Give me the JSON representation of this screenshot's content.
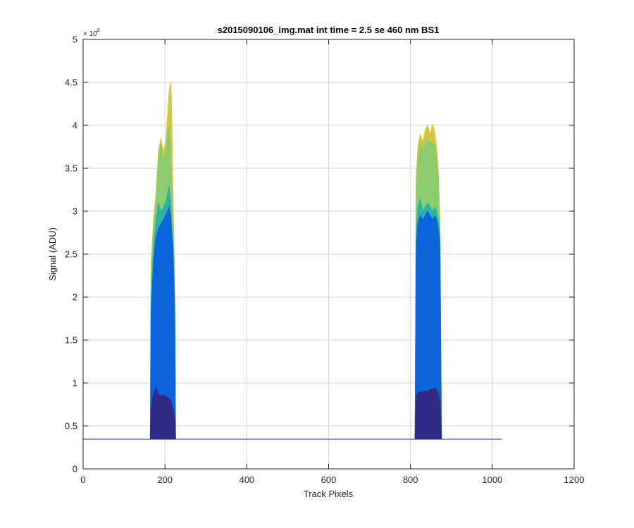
{
  "chart_data": {
    "type": "area",
    "title": "s2015090106_img.mat int time = 2.5 se  460 nm BS1",
    "xlabel": "Track Pixels",
    "ylabel": "Signal (ADU)",
    "xlim": [
      0,
      1200
    ],
    "ylim": [
      0,
      50000
    ],
    "x_ticks": [
      0,
      200,
      400,
      600,
      800,
      1000,
      1200
    ],
    "x_tick_labels": [
      "0",
      "200",
      "400",
      "600",
      "800",
      "1000",
      "1200"
    ],
    "y_ticks": [
      0,
      5000,
      10000,
      15000,
      20000,
      25000,
      30000,
      35000,
      40000,
      45000,
      50000
    ],
    "y_tick_labels": [
      "0",
      "0.5",
      "1",
      "1.5",
      "2",
      "2.5",
      "3",
      "3.5",
      "4",
      "4.5",
      "5"
    ],
    "y_exponent_label": "× 10",
    "y_exponent_power": "4",
    "grid": true,
    "baseline_value": 3450,
    "series": [
      {
        "color": "#d4c83a",
        "x": [
          1,
          164,
          166,
          172,
          178,
          184,
          190,
          196,
          202,
          206,
          210,
          214,
          216,
          220,
          224,
          226,
          564,
          811,
          814,
          818,
          824,
          830,
          836,
          842,
          848,
          854,
          860,
          864,
          868,
          872,
          876,
          1023
        ],
        "y": [
          3450,
          3450,
          24000,
          29000,
          32000,
          37000,
          38500,
          37000,
          38000,
          41000,
          44000,
          45000,
          43000,
          31000,
          22000,
          3450,
          3450,
          3450,
          34000,
          37500,
          39000,
          38000,
          39500,
          40000,
          39000,
          40200,
          39000,
          37500,
          35000,
          29000,
          3450,
          3450
        ]
      },
      {
        "color": "#8ccc6e",
        "x": [
          1,
          164,
          166,
          172,
          178,
          184,
          190,
          196,
          202,
          206,
          210,
          214,
          216,
          220,
          224,
          226,
          564,
          811,
          814,
          818,
          824,
          830,
          836,
          842,
          848,
          854,
          860,
          864,
          868,
          872,
          876,
          1023
        ],
        "y": [
          3450,
          3450,
          22000,
          28000,
          31000,
          36000,
          38000,
          36000,
          37000,
          39000,
          40000,
          38000,
          34000,
          29000,
          21000,
          3450,
          3450,
          3450,
          33000,
          36000,
          38000,
          37000,
          38000,
          38500,
          38000,
          38000,
          37500,
          36000,
          34000,
          28000,
          3450,
          3450
        ]
      },
      {
        "color": "#2cb3a6",
        "x": [
          1,
          164,
          166,
          172,
          178,
          184,
          190,
          196,
          202,
          206,
          210,
          214,
          216,
          220,
          224,
          226,
          564,
          811,
          814,
          818,
          824,
          830,
          836,
          842,
          848,
          854,
          860,
          864,
          868,
          872,
          876,
          1023
        ],
        "y": [
          3450,
          3450,
          20000,
          26000,
          29000,
          31000,
          30000,
          30500,
          31000,
          32000,
          33000,
          31000,
          29000,
          26000,
          19000,
          3450,
          3450,
          3450,
          28000,
          30500,
          31500,
          30000,
          30500,
          31000,
          30500,
          30000,
          30500,
          30000,
          29000,
          27000,
          3450,
          3450
        ]
      },
      {
        "color": "#0a64dc",
        "x": [
          1,
          164,
          166,
          172,
          178,
          184,
          190,
          196,
          202,
          206,
          210,
          214,
          216,
          220,
          224,
          226,
          564,
          811,
          814,
          818,
          824,
          830,
          836,
          842,
          848,
          854,
          860,
          864,
          868,
          872,
          876,
          1023
        ],
        "y": [
          3450,
          3450,
          18000,
          24000,
          27000,
          28000,
          28500,
          29000,
          29500,
          30000,
          30500,
          29500,
          28000,
          25000,
          18000,
          3450,
          3450,
          3450,
          26000,
          28500,
          29500,
          29000,
          29500,
          30000,
          29500,
          29000,
          29500,
          29000,
          28000,
          26000,
          3450,
          3450
        ]
      },
      {
        "color": "#2f2a87",
        "x": [
          1,
          164,
          166,
          172,
          178,
          184,
          190,
          196,
          202,
          206,
          210,
          214,
          216,
          220,
          224,
          226,
          564,
          811,
          814,
          818,
          824,
          830,
          836,
          842,
          848,
          854,
          860,
          864,
          868,
          872,
          876,
          1023
        ],
        "y": [
          3450,
          3450,
          7000,
          8800,
          9500,
          8600,
          8500,
          8600,
          8500,
          8300,
          8200,
          8000,
          7600,
          7000,
          6000,
          3450,
          3450,
          3450,
          8500,
          8800,
          9000,
          8900,
          9100,
          9000,
          9200,
          9300,
          9400,
          9200,
          8900,
          8000,
          3450,
          3450
        ]
      }
    ]
  }
}
